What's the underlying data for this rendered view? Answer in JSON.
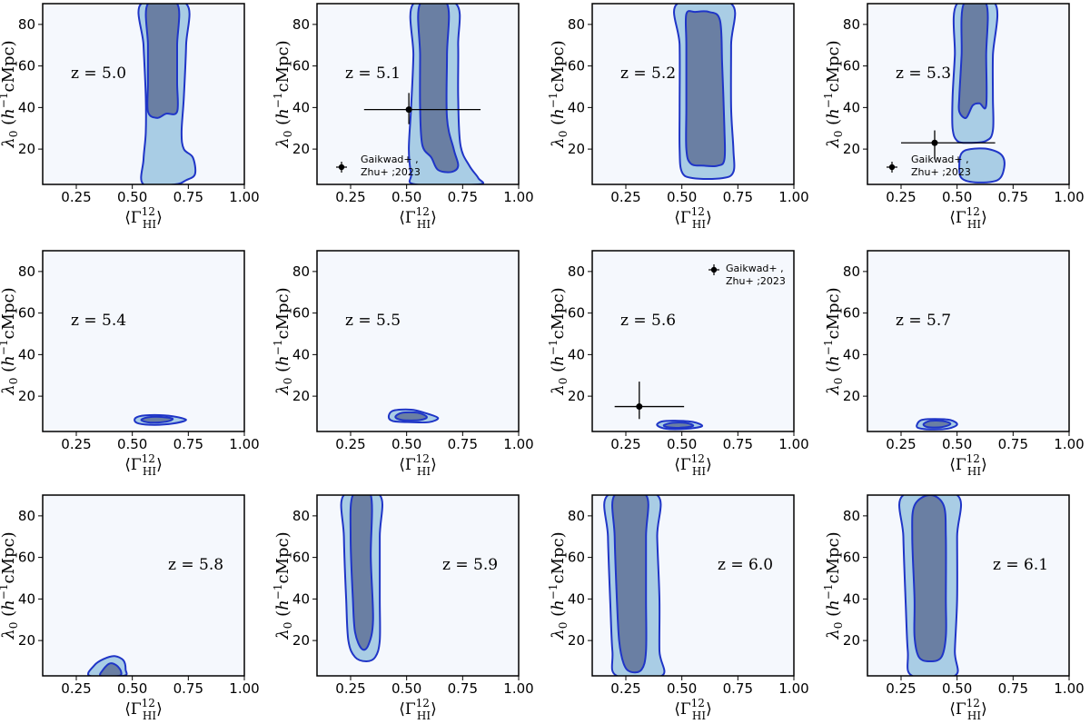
{
  "chart_data": {
    "type": "contour",
    "figure": {
      "layout": "3x4 grid of 2D posterior contour panels",
      "xlabel": "⟨Γ",
      "xlabel_sup": "12",
      "xlabel_sub": "HI",
      "xlabel_close": "⟩",
      "ylabel": "λ",
      "ylabel_sub": "0",
      "ylabel_unit_open": " (",
      "ylabel_unit_h": "h",
      "ylabel_unit_sup": "−1",
      "ylabel_unit_close": "cMpc)",
      "xlim": [
        0.1,
        1.0
      ],
      "ylim": [
        3,
        90
      ],
      "xticks": [
        0.25,
        0.5,
        0.75,
        1.0
      ],
      "xtick_labels": [
        "0.25",
        "0.50",
        "0.75",
        "1.00"
      ],
      "yticks": [
        20,
        40,
        60,
        80
      ],
      "ytick_labels": [
        "20",
        "40",
        "60",
        "80"
      ],
      "colors": {
        "inner_fill": "#6a7fa3",
        "outer_fill": "#a9cde5",
        "contour_line": "#1f35c7",
        "panel_background": "#f5f8fd",
        "marker": "#000000"
      }
    },
    "panels": [
      {
        "z_label": "z = 5.0",
        "label_pos": "upper-left",
        "outer": [
          [
            0.54,
            90
          ],
          [
            0.55,
            70
          ],
          [
            0.56,
            45
          ],
          [
            0.56,
            28
          ],
          [
            0.55,
            15
          ],
          [
            0.55,
            3
          ],
          [
            0.69,
            3
          ],
          [
            0.74,
            5
          ],
          [
            0.78,
            8
          ],
          [
            0.77,
            16
          ],
          [
            0.73,
            20
          ],
          [
            0.72,
            28
          ],
          [
            0.73,
            45
          ],
          [
            0.74,
            70
          ],
          [
            0.74,
            90
          ]
        ],
        "inner": [
          [
            0.57,
            90
          ],
          [
            0.57,
            70
          ],
          [
            0.57,
            52
          ],
          [
            0.57,
            38
          ],
          [
            0.61,
            35
          ],
          [
            0.65,
            37
          ],
          [
            0.7,
            38
          ],
          [
            0.7,
            52
          ],
          [
            0.7,
            70
          ],
          [
            0.7,
            90
          ]
        ],
        "legend": null,
        "points": []
      },
      {
        "z_label": "z = 5.1",
        "label_pos": "upper-left",
        "outer": [
          [
            0.53,
            90
          ],
          [
            0.53,
            65
          ],
          [
            0.52,
            40
          ],
          [
            0.51,
            20
          ],
          [
            0.52,
            8
          ],
          [
            0.54,
            3
          ],
          [
            0.82,
            3
          ],
          [
            0.82,
            6
          ],
          [
            0.78,
            12
          ],
          [
            0.74,
            22
          ],
          [
            0.73,
            45
          ],
          [
            0.73,
            70
          ],
          [
            0.72,
            90
          ]
        ],
        "inner": [
          [
            0.56,
            90
          ],
          [
            0.56,
            65
          ],
          [
            0.56,
            40
          ],
          [
            0.57,
            22
          ],
          [
            0.61,
            16
          ],
          [
            0.64,
            10
          ],
          [
            0.7,
            9
          ],
          [
            0.73,
            12
          ],
          [
            0.71,
            20
          ],
          [
            0.68,
            35
          ],
          [
            0.68,
            65
          ],
          [
            0.68,
            90
          ]
        ],
        "legend": {
          "line1": "Gaikwad+ ,",
          "line2": "Zhu+ ;2023"
        },
        "points": [
          {
            "x": 0.51,
            "y": 39,
            "xerr": [
              0.2,
              0.32
            ],
            "yerr": [
              7,
              8
            ]
          }
        ]
      },
      {
        "z_label": "z = 5.2",
        "label_pos": "upper-left",
        "outer": [
          [
            0.48,
            90
          ],
          [
            0.49,
            70
          ],
          [
            0.49,
            40
          ],
          [
            0.49,
            20
          ],
          [
            0.5,
            9
          ],
          [
            0.55,
            6
          ],
          [
            0.68,
            6
          ],
          [
            0.73,
            9
          ],
          [
            0.73,
            20
          ],
          [
            0.72,
            40
          ],
          [
            0.72,
            70
          ],
          [
            0.72,
            90
          ]
        ],
        "inner": [
          [
            0.52,
            85
          ],
          [
            0.52,
            70
          ],
          [
            0.52,
            40
          ],
          [
            0.52,
            20
          ],
          [
            0.54,
            13
          ],
          [
            0.6,
            12
          ],
          [
            0.66,
            12
          ],
          [
            0.69,
            15
          ],
          [
            0.69,
            30
          ],
          [
            0.68,
            60
          ],
          [
            0.67,
            82
          ],
          [
            0.62,
            86
          ],
          [
            0.56,
            86
          ]
        ],
        "legend": null,
        "points": []
      },
      {
        "z_label": "z = 5.3",
        "label_pos": "upper-left",
        "outer": [
          [
            0.5,
            90
          ],
          [
            0.49,
            65
          ],
          [
            0.48,
            45
          ],
          [
            0.48,
            30
          ],
          [
            0.5,
            24
          ],
          [
            0.55,
            23
          ],
          [
            0.63,
            24
          ],
          [
            0.66,
            29
          ],
          [
            0.66,
            45
          ],
          [
            0.66,
            65
          ],
          [
            0.67,
            90
          ]
        ],
        "inner": [
          [
            0.53,
            90
          ],
          [
            0.52,
            65
          ],
          [
            0.51,
            45
          ],
          [
            0.51,
            38
          ],
          [
            0.54,
            35
          ],
          [
            0.57,
            41
          ],
          [
            0.6,
            42
          ],
          [
            0.63,
            41
          ],
          [
            0.63,
            65
          ],
          [
            0.63,
            90
          ]
        ],
        "extra_outer": [
          [
            0.51,
            12
          ],
          [
            0.52,
            18
          ],
          [
            0.56,
            20
          ],
          [
            0.64,
            20
          ],
          [
            0.7,
            17
          ],
          [
            0.71,
            11
          ],
          [
            0.68,
            5
          ],
          [
            0.58,
            4
          ],
          [
            0.52,
            6
          ]
        ],
        "legend": {
          "line1": "Gaikwad+ ,",
          "line2": "Zhu+ ;2023"
        },
        "points": [
          {
            "x": 0.4,
            "y": 23,
            "xerr": [
              0.15,
              0.27
            ],
            "yerr": [
              8,
              6
            ]
          }
        ]
      },
      {
        "z_label": "z = 5.4",
        "label_pos": "upper-left",
        "outer": [
          [
            0.51,
            8.5
          ],
          [
            0.53,
            10.3
          ],
          [
            0.6,
            10.9
          ],
          [
            0.68,
            10.3
          ],
          [
            0.74,
            8.6
          ],
          [
            0.68,
            6.8
          ],
          [
            0.6,
            6.2
          ],
          [
            0.53,
            6.8
          ]
        ],
        "inner": [
          [
            0.54,
            8.5
          ],
          [
            0.57,
            9.8
          ],
          [
            0.63,
            10
          ],
          [
            0.68,
            9.1
          ],
          [
            0.65,
            7.7
          ],
          [
            0.58,
            7.3
          ]
        ],
        "legend": null,
        "points": []
      },
      {
        "z_label": "z = 5.5",
        "label_pos": "upper-left",
        "outer": [
          [
            0.42,
            10
          ],
          [
            0.44,
            13
          ],
          [
            0.52,
            13.5
          ],
          [
            0.58,
            12
          ],
          [
            0.64,
            9.5
          ],
          [
            0.6,
            7.5
          ],
          [
            0.52,
            7.5
          ],
          [
            0.44,
            8
          ]
        ],
        "inner": [
          [
            0.45,
            10
          ],
          [
            0.48,
            12
          ],
          [
            0.55,
            12
          ],
          [
            0.59,
            10
          ],
          [
            0.56,
            8.5
          ],
          [
            0.48,
            8.5
          ]
        ],
        "legend": null,
        "points": []
      },
      {
        "z_label": "z = 5.6",
        "label_pos": "upper-left",
        "outer": [
          [
            0.39,
            6
          ],
          [
            0.41,
            7.8
          ],
          [
            0.47,
            8.2
          ],
          [
            0.55,
            7.6
          ],
          [
            0.59,
            5.6
          ],
          [
            0.52,
            4.3
          ],
          [
            0.43,
            4.3
          ]
        ],
        "inner": [
          [
            0.42,
            6
          ],
          [
            0.46,
            7.2
          ],
          [
            0.52,
            7.1
          ],
          [
            0.55,
            5.7
          ],
          [
            0.49,
            4.8
          ],
          [
            0.44,
            5
          ]
        ],
        "legend": {
          "line1": "Gaikwad+ ,",
          "line2": "Zhu+ ;2023"
        },
        "points": [
          {
            "x": 0.31,
            "y": 15,
            "xerr": [
              0.11,
              0.2
            ],
            "yerr": [
              6,
              12
            ]
          }
        ]
      },
      {
        "z_label": "z = 5.7",
        "label_pos": "upper-left",
        "outer": [
          [
            0.32,
            6
          ],
          [
            0.34,
            8.5
          ],
          [
            0.4,
            9
          ],
          [
            0.47,
            8.5
          ],
          [
            0.5,
            6.4
          ],
          [
            0.46,
            4.4
          ],
          [
            0.38,
            4
          ],
          [
            0.33,
            4.6
          ]
        ],
        "inner": [
          [
            0.35,
            6.5
          ],
          [
            0.38,
            8.1
          ],
          [
            0.44,
            8
          ],
          [
            0.47,
            6.6
          ],
          [
            0.43,
            5.1
          ],
          [
            0.37,
            5.1
          ]
        ],
        "legend": null,
        "points": []
      },
      {
        "z_label": "z = 5.8",
        "label_pos": "middle-right",
        "outer": [
          [
            0.31,
            3
          ],
          [
            0.33,
            8
          ],
          [
            0.37,
            11
          ],
          [
            0.42,
            12.5
          ],
          [
            0.46,
            10.5
          ],
          [
            0.47,
            6
          ],
          [
            0.46,
            3
          ]
        ],
        "inner": [
          [
            0.36,
            3
          ],
          [
            0.37,
            6
          ],
          [
            0.4,
            9
          ],
          [
            0.43,
            8
          ],
          [
            0.45,
            5
          ],
          [
            0.44,
            3
          ]
        ],
        "legend": null,
        "points": []
      },
      {
        "z_label": "z = 5.9",
        "label_pos": "middle-right",
        "outer": [
          [
            0.22,
            90
          ],
          [
            0.22,
            70
          ],
          [
            0.23,
            40
          ],
          [
            0.24,
            20
          ],
          [
            0.27,
            12
          ],
          [
            0.32,
            10
          ],
          [
            0.36,
            12
          ],
          [
            0.38,
            20
          ],
          [
            0.38,
            40
          ],
          [
            0.38,
            70
          ],
          [
            0.38,
            90
          ]
        ],
        "inner": [
          [
            0.26,
            90
          ],
          [
            0.25,
            70
          ],
          [
            0.26,
            40
          ],
          [
            0.27,
            24
          ],
          [
            0.3,
            16
          ],
          [
            0.33,
            18
          ],
          [
            0.35,
            30
          ],
          [
            0.34,
            60
          ],
          [
            0.34,
            90
          ]
        ],
        "legend": null,
        "points": []
      },
      {
        "z_label": "z = 6.0",
        "label_pos": "middle-right",
        "outer": [
          [
            0.17,
            90
          ],
          [
            0.17,
            70
          ],
          [
            0.18,
            40
          ],
          [
            0.19,
            15
          ],
          [
            0.21,
            3
          ],
          [
            0.41,
            3
          ],
          [
            0.4,
            15
          ],
          [
            0.4,
            40
          ],
          [
            0.39,
            70
          ],
          [
            0.39,
            90
          ]
        ],
        "inner": [
          [
            0.2,
            90
          ],
          [
            0.2,
            70
          ],
          [
            0.21,
            40
          ],
          [
            0.22,
            20
          ],
          [
            0.24,
            9
          ],
          [
            0.27,
            5
          ],
          [
            0.32,
            6
          ],
          [
            0.34,
            15
          ],
          [
            0.34,
            40
          ],
          [
            0.34,
            70
          ],
          [
            0.34,
            90
          ]
        ],
        "legend": null,
        "points": []
      },
      {
        "z_label": "z = 6.1",
        "label_pos": "middle-right",
        "outer": [
          [
            0.26,
            90
          ],
          [
            0.26,
            70
          ],
          [
            0.27,
            40
          ],
          [
            0.28,
            15
          ],
          [
            0.3,
            3
          ],
          [
            0.49,
            3
          ],
          [
            0.49,
            15
          ],
          [
            0.5,
            40
          ],
          [
            0.5,
            70
          ],
          [
            0.5,
            90
          ]
        ],
        "inner": [
          [
            0.31,
            85
          ],
          [
            0.3,
            70
          ],
          [
            0.31,
            40
          ],
          [
            0.31,
            22
          ],
          [
            0.33,
            12
          ],
          [
            0.38,
            10
          ],
          [
            0.43,
            12
          ],
          [
            0.45,
            22
          ],
          [
            0.45,
            40
          ],
          [
            0.45,
            70
          ],
          [
            0.44,
            85
          ],
          [
            0.38,
            90
          ]
        ],
        "legend": null,
        "points": []
      }
    ]
  }
}
